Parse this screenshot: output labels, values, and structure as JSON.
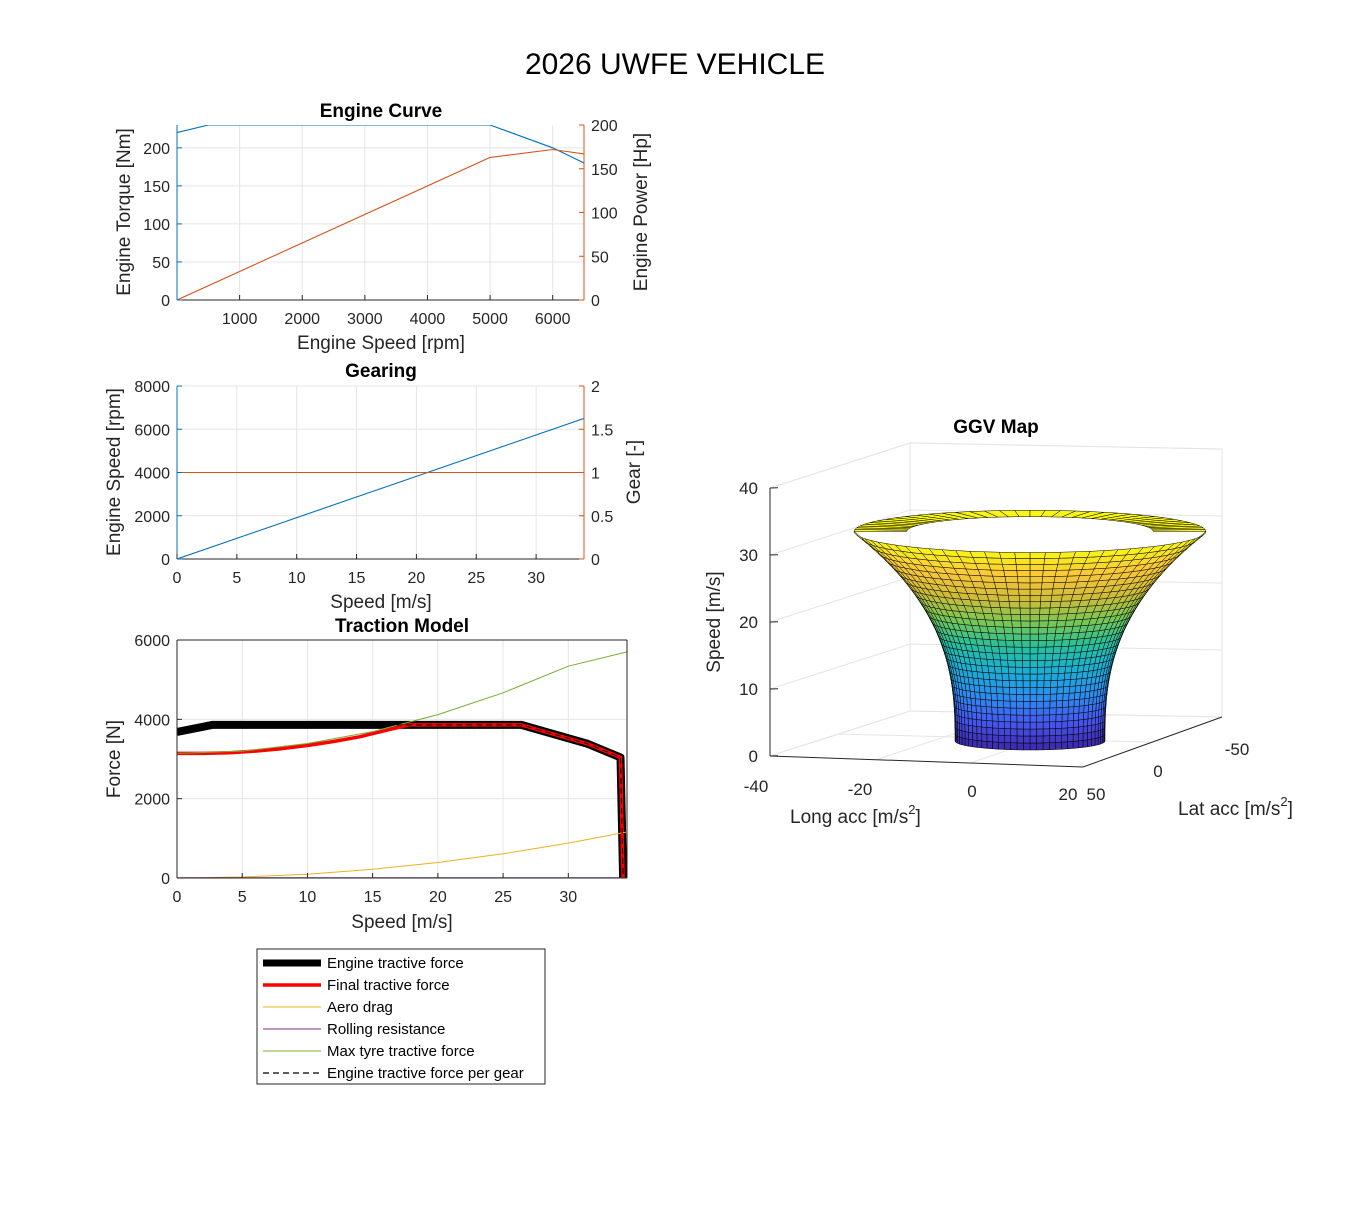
{
  "figure_title": "2026 UWFE VEHICLE",
  "colors": {
    "blue": "#0072BD",
    "orange": "#D95319",
    "yellow": "#EDB120",
    "purple": "#7E2F8E",
    "green": "#77AC30",
    "red": "#FF0000",
    "black": "#000000",
    "grid": "#E5E5E5",
    "axis": "#262626"
  },
  "chart_data": [
    {
      "id": "engine",
      "type": "line",
      "title": "Engine Curve",
      "xlabel": "Engine Speed [rpm]",
      "ylabel_left": "Engine Torque [Nm]",
      "ylabel_right": "Engine Power [Hp]",
      "xlim": [
        0,
        6500
      ],
      "ylim_left": [
        0,
        230
      ],
      "ylim_right": [
        0,
        200
      ],
      "xticks": [
        1000,
        2000,
        3000,
        4000,
        5000,
        6000
      ],
      "xtick_labels": [
        "1000",
        "2000",
        "3000",
        "4000",
        "5000",
        "6000"
      ],
      "yticks_left": [
        0,
        50,
        100,
        150,
        200
      ],
      "ytick_labels_left": [
        "0",
        "50",
        "100",
        "150",
        "200"
      ],
      "yticks_right": [
        0,
        50,
        100,
        150,
        200
      ],
      "ytick_labels_right": [
        "0",
        "50",
        "100",
        "150",
        "200"
      ],
      "series": [
        {
          "name": "Engine Torque",
          "axis": "left",
          "color": "blue",
          "x": [
            0,
            500,
            5000,
            6000,
            6500
          ],
          "y": [
            220,
            230,
            230,
            200,
            180
          ]
        },
        {
          "name": "Engine Power",
          "axis": "right",
          "color": "orange",
          "x": [
            0,
            5000,
            6000,
            6500
          ],
          "y": [
            0,
            163,
            172,
            167
          ]
        }
      ]
    },
    {
      "id": "gearing",
      "type": "line",
      "title": "Gearing",
      "xlabel": "Speed [m/s]",
      "ylabel_left": "Engine Speed [rpm]",
      "ylabel_right": "Gear [-]",
      "xlim": [
        0,
        34
      ],
      "ylim_left": [
        0,
        8000
      ],
      "ylim_right": [
        0,
        2
      ],
      "xticks": [
        0,
        5,
        10,
        15,
        20,
        25,
        30
      ],
      "xtick_labels": [
        "0",
        "5",
        "10",
        "15",
        "20",
        "25",
        "30"
      ],
      "yticks_left": [
        0,
        2000,
        4000,
        6000,
        8000
      ],
      "ytick_labels_left": [
        "0",
        "2000",
        "4000",
        "6000",
        "8000"
      ],
      "yticks_right": [
        0,
        0.5,
        1,
        1.5,
        2
      ],
      "ytick_labels_right": [
        "0",
        "0.5",
        "1",
        "1.5",
        "2"
      ],
      "series": [
        {
          "name": "Engine Speed",
          "axis": "left",
          "color": "blue",
          "x": [
            0,
            34
          ],
          "y": [
            0,
            6500
          ]
        },
        {
          "name": "Gear",
          "axis": "right",
          "color": "orange",
          "x": [
            0,
            34
          ],
          "y": [
            1,
            1
          ]
        }
      ]
    },
    {
      "id": "traction",
      "type": "line",
      "title": "Traction Model",
      "xlabel": "Speed [m/s]",
      "ylabel": "Force [N]",
      "xlim": [
        0,
        34.5
      ],
      "ylim": [
        0,
        6000
      ],
      "xticks": [
        0,
        5,
        10,
        15,
        20,
        25,
        30
      ],
      "xtick_labels": [
        "0",
        "5",
        "10",
        "15",
        "20",
        "25",
        "30"
      ],
      "yticks": [
        0,
        2000,
        4000,
        6000
      ],
      "ytick_labels": [
        "0",
        "2000",
        "4000",
        "6000"
      ],
      "series": [
        {
          "name": "Engine tractive force",
          "color": "black",
          "width": 8,
          "dash": "",
          "x": [
            0,
            2.7,
            26.4,
            31.5,
            34.0,
            34.2
          ],
          "y": [
            3680,
            3860,
            3860,
            3380,
            3040,
            0
          ]
        },
        {
          "name": "Final tractive force",
          "color": "red",
          "width": 3.5,
          "dash": "",
          "x": [
            0,
            2,
            4,
            6,
            8,
            10,
            12,
            14,
            16,
            17.8,
            26.4,
            31.5,
            34.0,
            34.2
          ],
          "y": [
            3140,
            3141,
            3160,
            3200,
            3260,
            3340,
            3440,
            3560,
            3720,
            3860,
            3860,
            3380,
            3040,
            0
          ]
        },
        {
          "name": "Aero drag",
          "color": "yellow",
          "width": 1,
          "dash": "",
          "x": [
            0,
            5,
            10,
            15,
            20,
            25,
            30,
            34.5
          ],
          "y": [
            0,
            24,
            97,
            220,
            390,
            610,
            880,
            1160
          ]
        },
        {
          "name": "Rolling resistance",
          "color": "purple",
          "width": 1,
          "dash": "",
          "x": [
            0,
            34.5
          ],
          "y": [
            8,
            8
          ]
        },
        {
          "name": "Max tyre tractive force",
          "color": "green",
          "width": 1,
          "dash": "",
          "x": [
            0,
            5,
            10,
            15,
            20,
            25,
            30,
            34.5
          ],
          "y": [
            3140,
            3200,
            3390,
            3690,
            4120,
            4670,
            5340,
            5700
          ]
        },
        {
          "name": "Engine tractive force per gear",
          "color": "black",
          "width": 1,
          "dash": "6,4",
          "x": [
            0,
            2.7,
            26.4,
            31.5,
            34.0,
            34.2
          ],
          "y": [
            3680,
            3860,
            3860,
            3380,
            3040,
            0
          ]
        }
      ],
      "legend": [
        {
          "label": "Engine tractive force",
          "color": "black",
          "width": 7,
          "dash": ""
        },
        {
          "label": "Final tractive force",
          "color": "red",
          "width": 3.5,
          "dash": ""
        },
        {
          "label": "Aero drag",
          "color": "yellow",
          "width": 1,
          "dash": ""
        },
        {
          "label": "Rolling resistance",
          "color": "purple",
          "width": 1,
          "dash": ""
        },
        {
          "label": "Max tyre tractive force",
          "color": "green",
          "width": 1,
          "dash": ""
        },
        {
          "label": "Engine tractive force per gear",
          "color": "black",
          "width": 1.2,
          "dash": "6,4"
        }
      ]
    },
    {
      "id": "ggv",
      "type": "surface",
      "title": "GGV Map",
      "xlabel": "Long acc [m/s",
      "xlabel_sup": "2",
      "xlabel_end": "]",
      "ylabel": "Lat acc [m/s",
      "ylabel_sup": "2",
      "ylabel_end": "]",
      "zlabel": "Speed [m/s]",
      "xtick_labels": [
        "-40",
        "-20",
        "0",
        "20"
      ],
      "ytick_labels": [
        "50",
        "0",
        "-50"
      ],
      "ztick_labels": [
        "0",
        "10",
        "20",
        "30",
        "40"
      ],
      "zlim": [
        0,
        40
      ],
      "speed_min": 0,
      "speed_max": 34,
      "bottom_radius": 15,
      "top_radius": 40,
      "colormap": [
        "#3E26A8",
        "#4656EF",
        "#2F8CEF",
        "#1AAED6",
        "#27BF9B",
        "#7BC653",
        "#D1BC38",
        "#FAC839",
        "#F9F615"
      ]
    }
  ]
}
